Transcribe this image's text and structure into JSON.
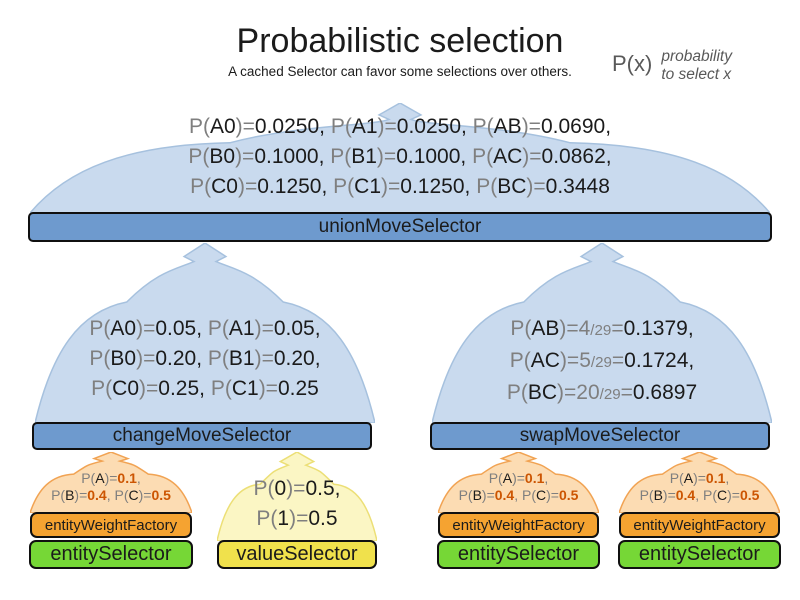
{
  "colors": {
    "dome_blue": "#c9daee",
    "dome_blue_border": "#a6c1de",
    "dome_orange": "#fcdcb3",
    "dome_orange_border": "#f1a353",
    "dome_yellow": "#fbf6c4",
    "dome_yellow_border": "#ecdf76",
    "bar_blue": "#6e9ace",
    "bar_orange": "#f5a331",
    "bar_green": "#76d736",
    "bar_yellow": "#f0e14c",
    "text_black": "#1b1b1b",
    "text_gray": "#7f7f7f",
    "value_orange": "#cc5502",
    "legend_gray": "#595959"
  },
  "header": {
    "title": "Probabilistic selection",
    "subtitle": "A cached Selector can favor some selections over others.",
    "legend": {
      "symbol": "P(x)",
      "note_line1": "probability",
      "note_line2": "to select x"
    }
  },
  "union_selector": {
    "label": "unionMoveSelector",
    "probability_lines": [
      [
        [
          "P(",
          "g"
        ],
        [
          "A0",
          "k"
        ],
        [
          ")=",
          "g"
        ],
        [
          "0.0250",
          "k"
        ],
        [
          ", ",
          "k"
        ],
        [
          "P(",
          "g"
        ],
        [
          "A1",
          "k"
        ],
        [
          ")=",
          "g"
        ],
        [
          "0.0250",
          "k"
        ],
        [
          ", ",
          "k"
        ],
        [
          "P(",
          "g"
        ],
        [
          "AB",
          "k"
        ],
        [
          ")=",
          "g"
        ],
        [
          "0.0690",
          "k"
        ],
        [
          ",",
          "k"
        ]
      ],
      [
        [
          "P(",
          "g"
        ],
        [
          "B0",
          "k"
        ],
        [
          ")=",
          "g"
        ],
        [
          "0.1000",
          "k"
        ],
        [
          ", ",
          "k"
        ],
        [
          "P(",
          "g"
        ],
        [
          "B1",
          "k"
        ],
        [
          ")=",
          "g"
        ],
        [
          "0.1000",
          "k"
        ],
        [
          ", ",
          "k"
        ],
        [
          "P(",
          "g"
        ],
        [
          "AC",
          "k"
        ],
        [
          ")=",
          "g"
        ],
        [
          "0.0862",
          "k"
        ],
        [
          ",",
          "k"
        ]
      ],
      [
        [
          "P(",
          "g"
        ],
        [
          "C0",
          "k"
        ],
        [
          ")=",
          "g"
        ],
        [
          "0.1250",
          "k"
        ],
        [
          ", ",
          "k"
        ],
        [
          "P(",
          "g"
        ],
        [
          "C1",
          "k"
        ],
        [
          ")=",
          "g"
        ],
        [
          "0.1250",
          "k"
        ],
        [
          ", ",
          "k"
        ],
        [
          "P(",
          "g"
        ],
        [
          "BC",
          "k"
        ],
        [
          ")=",
          "g"
        ],
        [
          "0.3448",
          "k"
        ]
      ]
    ]
  },
  "change_selector": {
    "label": "changeMoveSelector",
    "probability_lines": [
      [
        [
          "P(",
          "g"
        ],
        [
          "A0",
          "k"
        ],
        [
          ")=",
          "g"
        ],
        [
          "0.05",
          "k"
        ],
        [
          ", ",
          "k"
        ],
        [
          "P(",
          "g"
        ],
        [
          "A1",
          "k"
        ],
        [
          ")=",
          "g"
        ],
        [
          "0.05",
          "k"
        ],
        [
          ",",
          "k"
        ]
      ],
      [
        [
          "P(",
          "g"
        ],
        [
          "B0",
          "k"
        ],
        [
          ")=",
          "g"
        ],
        [
          "0.20",
          "k"
        ],
        [
          ", ",
          "k"
        ],
        [
          "P(",
          "g"
        ],
        [
          "B1",
          "k"
        ],
        [
          ")=",
          "g"
        ],
        [
          "0.20",
          "k"
        ],
        [
          ",",
          "k"
        ]
      ],
      [
        [
          "P(",
          "g"
        ],
        [
          "C0",
          "k"
        ],
        [
          ")=",
          "g"
        ],
        [
          "0.25",
          "k"
        ],
        [
          ", ",
          "k"
        ],
        [
          "P(",
          "g"
        ],
        [
          "C1",
          "k"
        ],
        [
          ")=",
          "g"
        ],
        [
          "0.25",
          "k"
        ]
      ]
    ]
  },
  "swap_selector": {
    "label": "swapMoveSelector",
    "probability_lines": [
      [
        [
          "P(",
          "g"
        ],
        [
          "AB",
          "k"
        ],
        [
          ")=",
          "g"
        ],
        [
          "4",
          "g"
        ],
        [
          "/29",
          "s"
        ],
        [
          "=",
          "g"
        ],
        [
          "0.1379",
          "k"
        ],
        [
          ",",
          "k"
        ]
      ],
      [
        [
          "P(",
          "g"
        ],
        [
          "AC",
          "k"
        ],
        [
          ")=",
          "g"
        ],
        [
          "5",
          "g"
        ],
        [
          "/29",
          "s"
        ],
        [
          "=",
          "g"
        ],
        [
          "0.1724",
          "k"
        ],
        [
          ",",
          "k"
        ]
      ],
      [
        [
          "P(",
          "g"
        ],
        [
          "BC",
          "k"
        ],
        [
          ")=",
          "g"
        ],
        [
          "20",
          "g"
        ],
        [
          "/29",
          "s"
        ],
        [
          "=",
          "g"
        ],
        [
          "0.6897",
          "k"
        ]
      ]
    ]
  },
  "entity_weight_factory": {
    "label": "entityWeightFactory",
    "probability_lines": [
      [
        [
          "P(",
          "g"
        ],
        [
          "A",
          "k"
        ],
        [
          ")=",
          "g"
        ],
        [
          "0.1",
          "o"
        ],
        [
          ",",
          "g"
        ]
      ],
      [
        [
          "P(",
          "g"
        ],
        [
          "B",
          "k"
        ],
        [
          ")=",
          "g"
        ],
        [
          "0.4",
          "o"
        ],
        [
          ", ",
          "g"
        ],
        [
          "P(",
          "g"
        ],
        [
          "C",
          "k"
        ],
        [
          ")=",
          "g"
        ],
        [
          "0.5",
          "o"
        ]
      ]
    ]
  },
  "value_selector": {
    "label": "valueSelector",
    "probability_lines": [
      [
        [
          "P(",
          "g"
        ],
        [
          "0",
          "k"
        ],
        [
          ")=",
          "g"
        ],
        [
          "0.5",
          "k"
        ],
        [
          ",",
          "k"
        ]
      ],
      [
        [
          "P(",
          "g"
        ],
        [
          "1",
          "k"
        ],
        [
          ")=",
          "g"
        ],
        [
          "0.5",
          "k"
        ]
      ]
    ]
  },
  "entity_selector": {
    "label": "entitySelector"
  }
}
